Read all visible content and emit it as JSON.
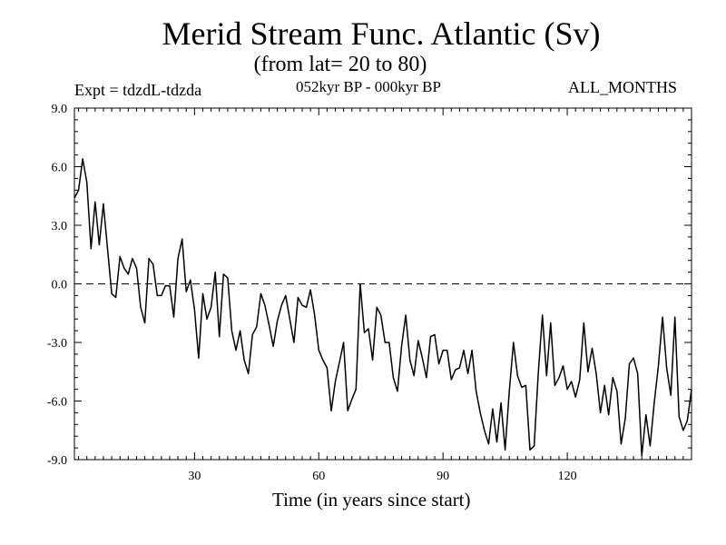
{
  "chart_data": {
    "type": "line",
    "title": "Merid Stream Func. Atlantic (Sv)",
    "subtitle": "(from lat= 20 to 80)",
    "experiment_label": "Expt = tdzdL-tdzda",
    "period_label": "052kyr BP - 000kyr BP",
    "season_label": "ALL_MONTHS",
    "xlabel": "Time (in years since start)",
    "ylabel": "",
    "xlim": [
      1,
      150
    ],
    "ylim": [
      -9.0,
      9.0
    ],
    "x_ticks": [
      30,
      60,
      90,
      120
    ],
    "y_ticks": [
      9.0,
      6.0,
      3.0,
      0.0,
      -3.0,
      -6.0,
      -9.0
    ],
    "y_tick_labels": [
      "9.0",
      "6.0",
      "3.0",
      "0.0",
      "-3.0",
      "-6.0",
      "-9.0"
    ],
    "x_tick_labels": [
      "30",
      "60",
      "90",
      "120"
    ],
    "reference_line": {
      "y": 0.0,
      "style": "dashed"
    },
    "series": [
      {
        "name": "tdzdL-tdzda",
        "color": "#000000",
        "x_start": 1,
        "x_step": 1,
        "values": [
          4.4,
          4.8,
          6.4,
          5.2,
          1.8,
          4.2,
          2.0,
          4.1,
          1.8,
          -0.5,
          -0.7,
          1.4,
          0.8,
          0.5,
          1.3,
          0.8,
          -1.2,
          -2.0,
          1.3,
          1.0,
          -0.6,
          -0.6,
          -0.1,
          -0.1,
          -1.7,
          1.3,
          2.3,
          -0.4,
          0.2,
          -1.3,
          -3.8,
          -0.5,
          -1.8,
          -1.2,
          0.6,
          -2.7,
          0.5,
          0.3,
          -2.4,
          -3.4,
          -2.4,
          -3.9,
          -4.6,
          -2.6,
          -2.2,
          -0.5,
          -1.1,
          -2.1,
          -3.2,
          -1.9,
          -1.1,
          -0.6,
          -1.8,
          -3.0,
          -0.7,
          -1.1,
          -1.2,
          -0.3,
          -1.6,
          -3.4,
          -3.9,
          -4.3,
          -6.5,
          -5.0,
          -4.0,
          -3.0,
          -6.5,
          -5.9,
          -5.4,
          0.0,
          -2.5,
          -2.3,
          -3.9,
          -1.2,
          -1.6,
          -3.0,
          -3.0,
          -4.8,
          -5.5,
          -3.2,
          -1.6,
          -3.9,
          -4.7,
          -2.9,
          -3.8,
          -4.8,
          -2.7,
          -2.6,
          -4.1,
          -3.4,
          -3.4,
          -4.9,
          -4.4,
          -4.3,
          -3.4,
          -4.6,
          -3.4,
          -5.5,
          -6.6,
          -7.5,
          -8.2,
          -6.4,
          -8.1,
          -6.1,
          -8.5,
          -5.5,
          -3.0,
          -4.7,
          -5.3,
          -5.2,
          -8.5,
          -8.3,
          -4.6,
          -1.6,
          -4.7,
          -2.0,
          -5.2,
          -4.8,
          -4.2,
          -5.4,
          -5.0,
          -5.8,
          -4.9,
          -2.0,
          -4.5,
          -3.3,
          -4.6,
          -6.6,
          -5.2,
          -6.7,
          -4.8,
          -5.5,
          -8.2,
          -6.9,
          -4.1,
          -3.8,
          -4.6,
          -8.8,
          -6.7,
          -8.3,
          -6.1,
          -4.2,
          -1.7,
          -4.3,
          -5.7,
          -1.7,
          -6.8,
          -7.5,
          -7.0,
          -5.4
        ]
      }
    ]
  }
}
